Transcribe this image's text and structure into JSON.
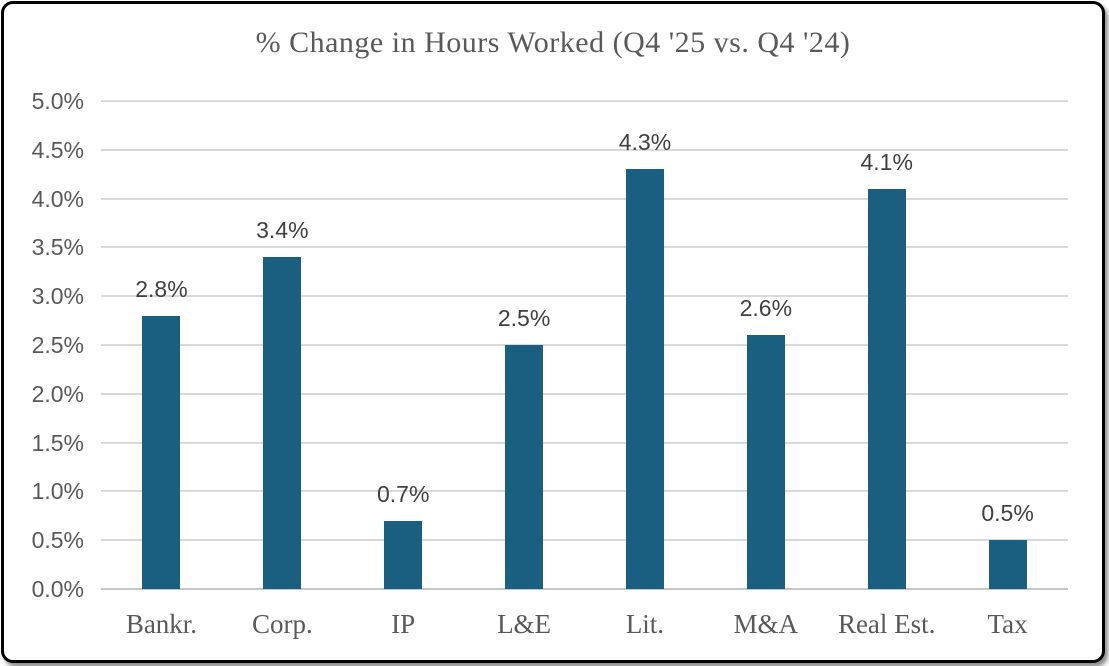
{
  "chart_data": {
    "type": "bar",
    "title": "% Change in Hours Worked (Q4 '25 vs. Q4 '24)",
    "categories": [
      "Bankr.",
      "Corp.",
      "IP",
      "L&E",
      "Lit.",
      "M&A",
      "Real Est.",
      "Tax"
    ],
    "values": [
      2.8,
      3.4,
      0.7,
      2.5,
      4.3,
      2.6,
      4.1,
      0.5
    ],
    "data_labels": [
      "2.8%",
      "3.4%",
      "0.7%",
      "2.5%",
      "4.3%",
      "2.6%",
      "4.1%",
      "0.5%"
    ],
    "xlabel": "",
    "ylabel": "",
    "ylim": [
      0,
      5
    ],
    "ytick_step": 0.5,
    "ytick_labels": [
      "0.0%",
      "0.5%",
      "1.0%",
      "1.5%",
      "2.0%",
      "2.5%",
      "3.0%",
      "3.5%",
      "4.0%",
      "4.5%",
      "5.0%"
    ],
    "grid": true,
    "legend": "none"
  },
  "colors": {
    "bar": "#1A5E80",
    "gridline": "#D9D9D9",
    "axis_line": "#C6C6C6",
    "title_text": "#595959",
    "axis_text": "#595959",
    "data_label_text": "#404040",
    "frame_border": "#000000",
    "background": "#FFFFFF"
  }
}
